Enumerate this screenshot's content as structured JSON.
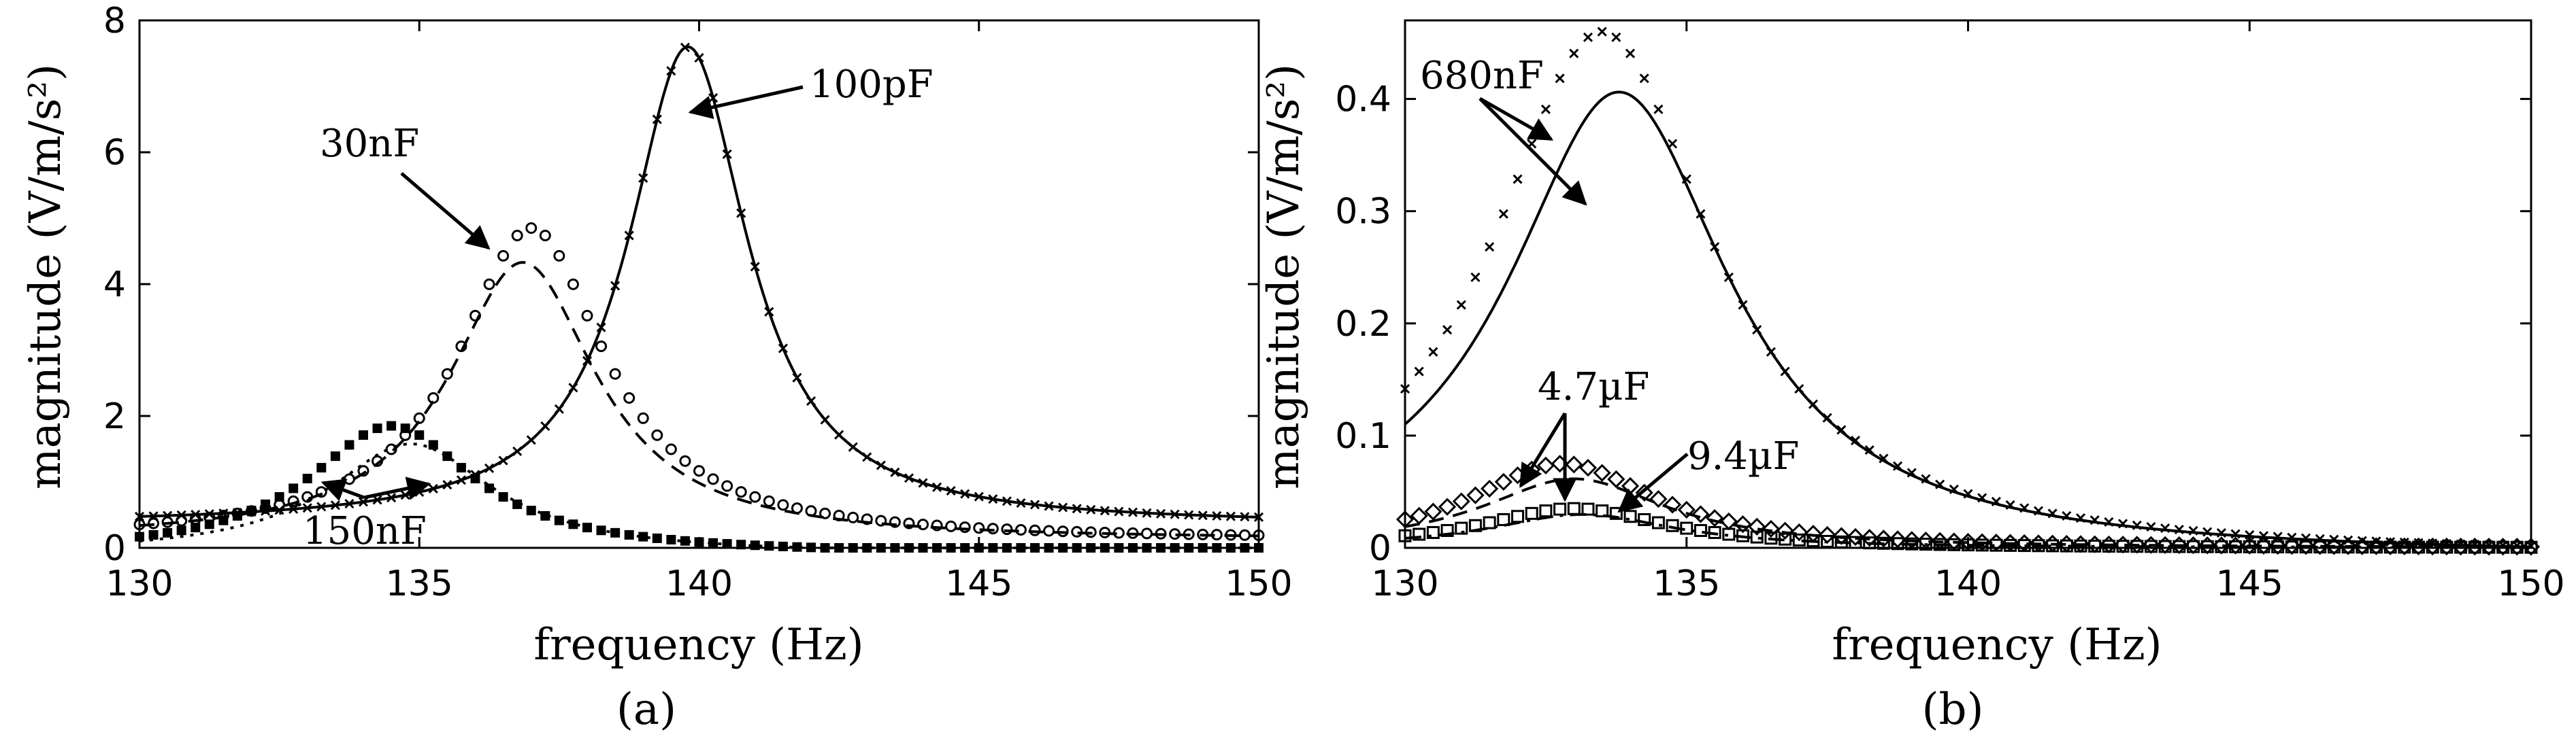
{
  "chart_data": [
    {
      "type": "line",
      "panel": "a",
      "panel_label": "(a)",
      "xlabel": "frequency (Hz)",
      "ylabel": "magnitude (V/m/s²)",
      "xlim": [
        130,
        150
      ],
      "ylim": [
        0,
        8
      ],
      "xticks": [
        130,
        135,
        140,
        145,
        150
      ],
      "yticks": [
        0,
        2,
        4,
        6,
        8
      ],
      "series": [
        {
          "name": "100pF",
          "marker": "x",
          "peak_freq": 139.8,
          "peak": 7.6,
          "width": 1.3,
          "base": 0.35,
          "fit_line": "solid"
        },
        {
          "name": "30nF",
          "marker": "o",
          "peak_freq": 137.0,
          "peak": 4.85,
          "width": 1.6,
          "base": 0.12,
          "fit_line": "dashed"
        },
        {
          "name": "150nF",
          "marker": "square-filled",
          "peak_freq": 134.5,
          "peak": 1.85,
          "width": 1.8,
          "base": -0.1,
          "fit_line": "dotted"
        }
      ],
      "annotations": [
        {
          "text": "100pF",
          "target_series": "100pF"
        },
        {
          "text": "30nF",
          "target_series": "30nF"
        },
        {
          "text": "150nF",
          "target_series": "150nF"
        }
      ]
    },
    {
      "type": "line",
      "panel": "b",
      "panel_label": "(b)",
      "xlabel": "frequency (Hz)",
      "ylabel": "magnitude (V/m/s²)",
      "xlim": [
        130,
        150
      ],
      "ylim": [
        0,
        0.47
      ],
      "xticks": [
        130,
        135,
        140,
        145,
        150
      ],
      "yticks": [
        0,
        0.1,
        0.2,
        0.3,
        0.4
      ],
      "series": [
        {
          "name": "680nF",
          "marker": "x",
          "peak_freq": 133.5,
          "peak": 0.46,
          "width": 2.4,
          "base": -0.008,
          "fit_line": "solid"
        },
        {
          "name": "4.7µF",
          "marker": "diamond",
          "peak_freq": 132.8,
          "peak": 0.075,
          "width": 2.0,
          "base": 0.0,
          "fit_line": "dashed"
        },
        {
          "name": "9.4µF",
          "marker": "square",
          "peak_freq": 133.0,
          "peak": 0.035,
          "width": 2.0,
          "base": 0.0,
          "fit_line": "dash-dot"
        }
      ],
      "annotations": [
        {
          "text": "680nF",
          "target_series": "680nF"
        },
        {
          "text": "4.7µF",
          "target_series": "4.7µF"
        },
        {
          "text": "9.4µF",
          "target_series": "9.4µF"
        }
      ]
    }
  ]
}
